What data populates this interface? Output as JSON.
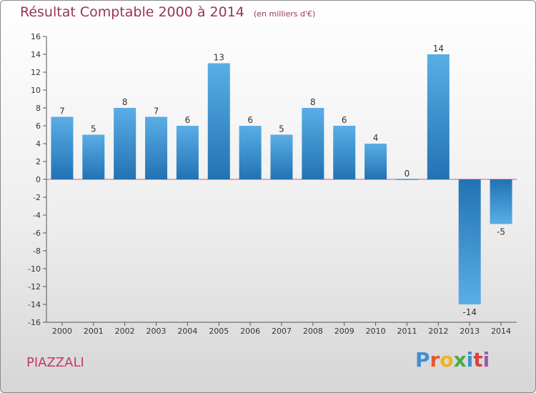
{
  "header": {
    "title": "Résultat Comptable 2000 à 2014",
    "unit": "(en milliers d'€)"
  },
  "footer": {
    "commune": "PIAZZALI",
    "logo": "Proxiti",
    "logo_colors": [
      "#3f8fd0",
      "#e8572e",
      "#f0b41c",
      "#4ba84a",
      "#3f8fd0",
      "#e03e3e",
      "#9b59b6"
    ]
  },
  "chart_data": {
    "type": "bar",
    "title": "Résultat Comptable 2000 à 2014",
    "ylabel": "en milliers d'€",
    "xlabel": "",
    "categories": [
      "2000",
      "2001",
      "2002",
      "2003",
      "2004",
      "2005",
      "2006",
      "2007",
      "2008",
      "2009",
      "2010",
      "2011",
      "2012",
      "2013",
      "2014"
    ],
    "values": [
      7,
      5,
      8,
      7,
      6,
      13,
      6,
      5,
      8,
      6,
      4,
      0,
      14,
      -14,
      -5
    ],
    "ylim": [
      -16,
      16
    ],
    "yticks": [
      16,
      14,
      12,
      10,
      8,
      6,
      4,
      2,
      0,
      -2,
      -4,
      -6,
      -8,
      -10,
      -12,
      -14,
      -16
    ],
    "grid": false,
    "bar_color_top": "#5aaee6",
    "bar_color_bottom": "#2272b4",
    "axis_color": "#555555",
    "zero_line_color": "#c25a8a"
  }
}
